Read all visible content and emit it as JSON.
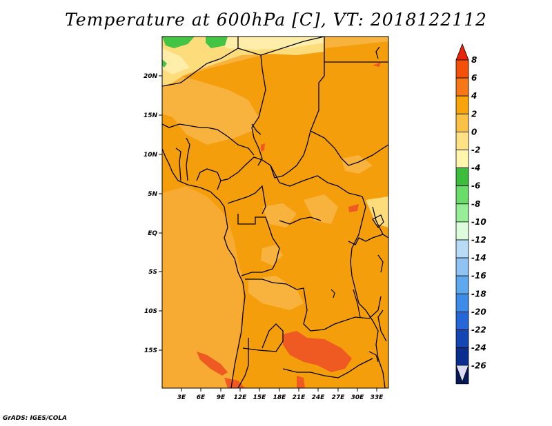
{
  "title": "Temperature at 600hPa [C], VT: 2018122112",
  "credit": "GrADS: IGES/COLA",
  "lat_labels": [
    "20N",
    "15N",
    "10N",
    "5N",
    "EQ",
    "5S",
    "10S",
    "15S"
  ],
  "lon_labels": [
    "3E",
    "6E",
    "9E",
    "12E",
    "15E",
    "18E",
    "21E",
    "24E",
    "27E",
    "30E",
    "33E"
  ],
  "colorbar": {
    "labels": [
      "8",
      "6",
      "4",
      "2",
      "0",
      "-2",
      "-4",
      "-6",
      "-8",
      "-10",
      "-12",
      "-14",
      "-16",
      "-18",
      "-20",
      "-22",
      "-24",
      "-26"
    ],
    "colors": [
      "#e8240c",
      "#f4500a",
      "#f77716",
      "#f8a40a",
      "#f9c245",
      "#fee283",
      "#fff6ac",
      "#3cbe3c",
      "#6adc6a",
      "#96ef96",
      "#dcfcdc",
      "#b8dcf7",
      "#8fc3f3",
      "#5ea8ee",
      "#3c8ce8",
      "#2567d8",
      "#1547b4",
      "#0a2e90",
      "#061a5a",
      "#dcdcf5"
    ]
  },
  "colors": {
    "ocean": "#f7a52a",
    "land_main": "#f59e0b",
    "warm": "#ee5a22",
    "pale": "#fddc7c",
    "palest": "#ffeeaa",
    "green": "#44c444",
    "light_orange": "#f8b33e"
  }
}
